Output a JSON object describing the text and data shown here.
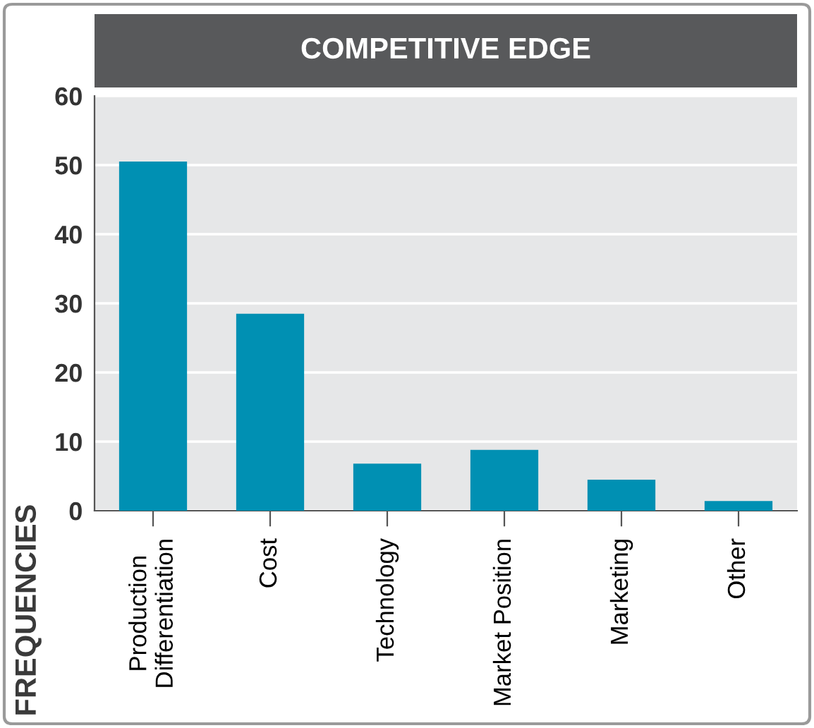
{
  "chart_data": {
    "type": "bar",
    "title": "COMPETITIVE EDGE",
    "ylabel": "FREQUENCIES",
    "categories": [
      "Production\nDifferentiation",
      "Cost",
      "Technology",
      "Market Position",
      "Marketing",
      "Other"
    ],
    "values": [
      50.5,
      28.5,
      6.8,
      8.8,
      4.5,
      1.4
    ],
    "color": "#0090b3",
    "ylim": [
      0,
      60
    ],
    "yticks": [
      0,
      10,
      20,
      30,
      40,
      50,
      60
    ],
    "grid": "y"
  }
}
